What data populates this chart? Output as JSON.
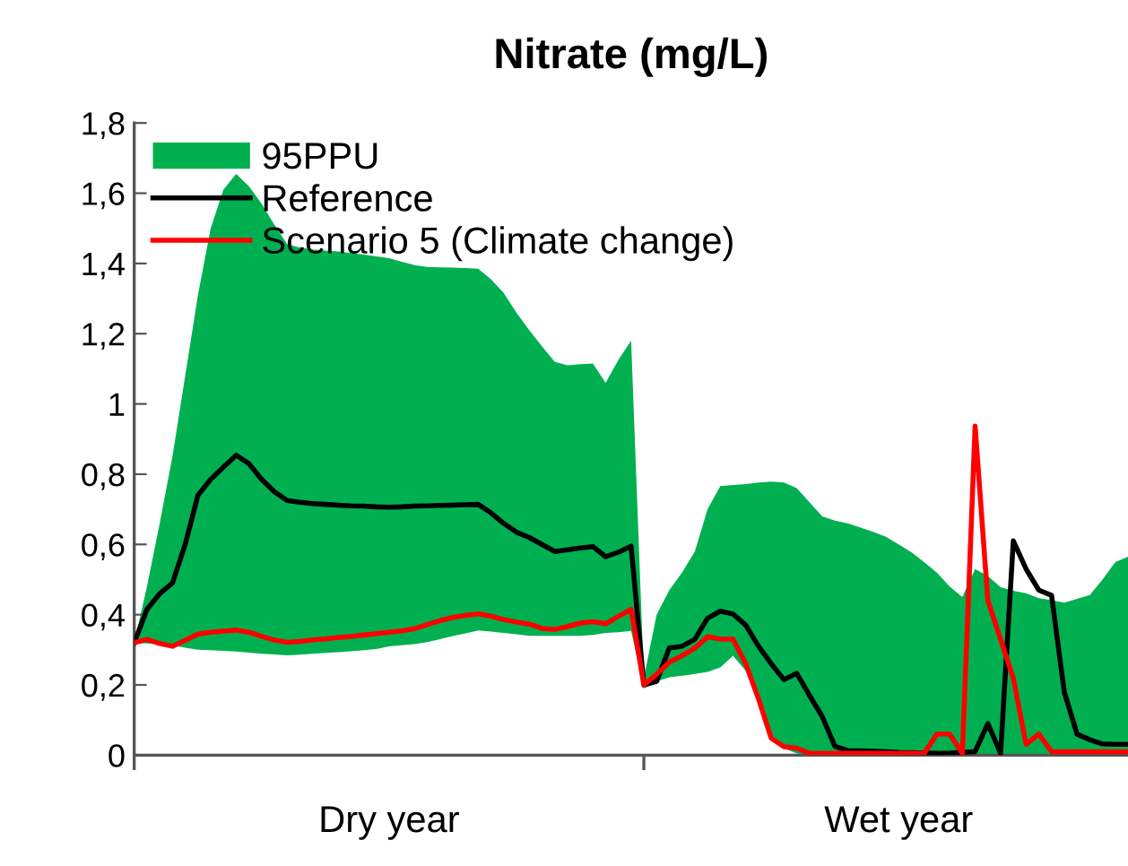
{
  "chart_data": {
    "type": "line",
    "title": "Nitrate (mg/L)",
    "categories": [
      null,
      null,
      null,
      null,
      null,
      null,
      null,
      null,
      null,
      null,
      null,
      null,
      null,
      null,
      null,
      null,
      null,
      null,
      null,
      null,
      "Dry year",
      null,
      null,
      null,
      null,
      null,
      null,
      null,
      null,
      null,
      null,
      null,
      null,
      null,
      null,
      null,
      null,
      null,
      null,
      null,
      null,
      null,
      null,
      null,
      null,
      null,
      null,
      null,
      null,
      null,
      null,
      null,
      null,
      null,
      null,
      null,
      null,
      null,
      null,
      null,
      "Wet year",
      null,
      null,
      null,
      null,
      null,
      null,
      null,
      null,
      null,
      null,
      null,
      null,
      null,
      null,
      null,
      null,
      null,
      null
    ],
    "ylim": [
      0,
      1.8
    ],
    "yticks": [
      0,
      {
        "value": 0.2,
        "label": "0,2"
      },
      {
        "value": 0.4,
        "label": "0,4"
      },
      {
        "value": 0.6,
        "label": "0,6"
      },
      {
        "value": 0.8,
        "label": "0,8"
      },
      1,
      {
        "value": 1.2,
        "label": "1,2"
      },
      {
        "value": 1.4,
        "label": "1,4"
      },
      {
        "value": 1.6,
        "label": "1,6"
      },
      {
        "value": 1.8,
        "label": "1,8"
      }
    ],
    "grid": false,
    "legend": "top left",
    "marker": "none",
    "line_style": "solid",
    "series": [
      {
        "name": "95PPU",
        "type": "area",
        "color": "#00b050",
        "values": [
          null,
          null,
          null,
          null,
          null,
          null,
          null,
          null,
          null,
          null,
          null,
          null,
          null,
          null,
          null,
          null,
          null,
          null,
          null,
          null,
          null,
          null,
          null,
          null,
          null,
          null,
          null,
          null,
          null,
          null,
          null,
          null,
          null,
          null,
          null,
          null,
          null,
          null,
          null,
          null,
          null,
          null,
          null,
          null,
          null,
          null,
          null,
          null,
          null,
          null,
          null,
          null,
          null,
          null,
          null,
          null,
          null,
          null,
          null,
          null,
          null,
          null,
          null,
          null,
          null,
          null,
          null,
          null,
          null,
          null,
          null,
          null,
          null,
          null,
          null,
          null,
          null,
          null,
          null
        ],
        "upper": [
          0.32,
          0.48,
          0.66,
          0.85,
          1.08,
          1.31,
          1.5,
          1.61,
          1.655,
          1.62,
          1.57,
          1.51,
          1.455,
          1.445,
          1.44,
          1.437,
          1.434,
          1.43,
          1.425,
          1.42,
          1.415,
          1.405,
          1.395,
          1.39,
          1.389,
          1.388,
          1.387,
          1.385,
          1.355,
          1.316,
          1.26,
          1.21,
          1.164,
          1.12,
          1.11,
          1.113,
          1.115,
          1.06,
          1.125,
          1.18,
          0.22,
          0.4,
          0.47,
          0.52,
          0.58,
          0.7,
          0.766,
          0.769,
          0.772,
          0.776,
          0.779,
          0.776,
          0.76,
          0.72,
          0.68,
          0.668,
          0.66,
          0.648,
          0.636,
          0.622,
          0.6,
          0.578,
          0.55,
          0.52,
          0.48,
          0.45,
          0.53,
          0.51,
          0.478,
          0.468,
          0.461,
          0.447,
          0.441,
          0.434,
          0.445,
          0.456,
          0.5,
          0.55,
          0.565
        ],
        "lower": [
          0.32,
          0.318,
          0.315,
          0.312,
          0.306,
          0.3,
          0.299,
          0.297,
          0.295,
          0.292,
          0.289,
          0.287,
          0.284,
          0.286,
          0.289,
          0.291,
          0.293,
          0.296,
          0.299,
          0.302,
          0.31,
          0.313,
          0.316,
          0.322,
          0.33,
          0.339,
          0.347,
          0.355,
          0.352,
          0.348,
          0.344,
          0.34,
          0.34,
          0.34,
          0.34,
          0.34,
          0.342,
          0.348,
          0.35,
          0.354,
          0.19,
          0.21,
          0.222,
          0.226,
          0.231,
          0.237,
          0.25,
          0.283,
          0.24,
          0.15,
          0.05,
          0.02,
          0.005,
          0,
          0,
          0,
          0,
          0,
          0,
          0,
          0,
          0,
          0,
          0,
          0,
          0,
          0,
          0,
          0,
          0,
          0,
          0,
          0,
          0,
          0,
          0,
          0,
          0,
          0
        ]
      },
      {
        "name": "Reference",
        "color": "#000000",
        "values": [
          0.32,
          0.415,
          0.46,
          0.49,
          0.6,
          0.74,
          0.785,
          0.82,
          0.854,
          0.83,
          0.785,
          0.75,
          0.725,
          0.72,
          0.716,
          0.714,
          0.712,
          0.71,
          0.709,
          0.707,
          0.706,
          0.707,
          0.709,
          0.71,
          0.711,
          0.712,
          0.713,
          0.714,
          0.69,
          0.66,
          0.635,
          0.62,
          0.6,
          0.58,
          0.585,
          0.59,
          0.594,
          0.565,
          0.578,
          0.595,
          0.2,
          0.21,
          0.305,
          0.31,
          0.33,
          0.39,
          0.41,
          0.402,
          0.37,
          0.31,
          0.26,
          0.215,
          0.233,
          0.17,
          0.11,
          0.025,
          0.013,
          0.012,
          0.011,
          0.01,
          0.008,
          0.007,
          0.006,
          0.005,
          0.006,
          0.008,
          0.01,
          0.09,
          0.005,
          0.61,
          0.53,
          0.47,
          0.455,
          0.18,
          0.06,
          0.044,
          0.032,
          0.031,
          0.031
        ]
      },
      {
        "name": "Scenario 5 (Climate change)",
        "color": "#ff0000",
        "values": [
          0.32,
          0.33,
          0.318,
          0.31,
          0.327,
          0.345,
          0.35,
          0.353,
          0.356,
          0.35,
          0.338,
          0.328,
          0.321,
          0.324,
          0.328,
          0.331,
          0.335,
          0.338,
          0.342,
          0.346,
          0.35,
          0.354,
          0.36,
          0.372,
          0.383,
          0.392,
          0.398,
          0.402,
          0.396,
          0.386,
          0.379,
          0.373,
          0.361,
          0.358,
          0.366,
          0.376,
          0.38,
          0.374,
          0.395,
          0.415,
          0.2,
          0.23,
          0.265,
          0.283,
          0.305,
          0.337,
          0.331,
          0.33,
          0.26,
          0.16,
          0.048,
          0.024,
          0.02,
          0.005,
          0.005,
          0.005,
          0.005,
          0.005,
          0.005,
          0.005,
          0.005,
          0.005,
          0.005,
          0.06,
          0.06,
          0.005,
          0.937,
          0.44,
          0.33,
          0.219,
          0.031,
          0.06,
          0.01,
          0.01,
          0.01,
          0.01,
          0.01,
          0.01,
          0.01
        ]
      }
    ]
  }
}
